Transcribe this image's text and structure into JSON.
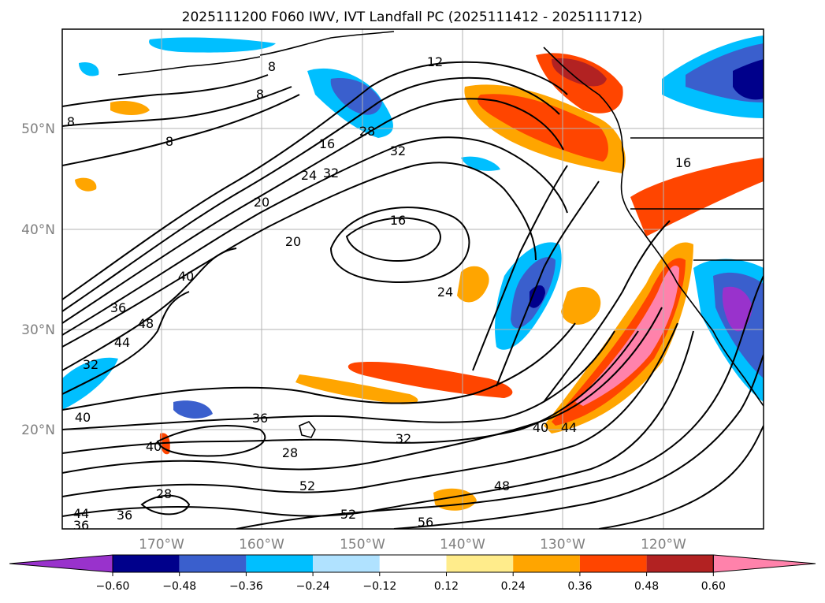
{
  "title": "2025111200 F060 IWV, IVT Landfall PC (2025111412 - 2025111712)",
  "lat_labels": [
    "50°N",
    "40°N",
    "30°N",
    "20°N"
  ],
  "lon_labels": [
    "170°W",
    "160°W",
    "150°W",
    "140°W",
    "130°W",
    "120°W"
  ],
  "colorbar": {
    "tick_labels": [
      "−0.60",
      "−0.48",
      "−0.36",
      "−0.24",
      "−0.12",
      "0.12",
      "0.24",
      "0.36",
      "0.48",
      "0.60"
    ],
    "colors": [
      "#9932cc",
      "#00008b",
      "#3a5fcd",
      "#00bfff",
      "#b0e2ff",
      "#ffffff",
      "#ffec8b",
      "#ffa500",
      "#ff4500",
      "#b22222",
      "#ff82ab"
    ]
  },
  "contour_labels": [
    {
      "text": "12"
    },
    {
      "text": "8"
    },
    {
      "text": "8"
    },
    {
      "text": "8"
    },
    {
      "text": "8"
    },
    {
      "text": "16"
    },
    {
      "text": "28"
    },
    {
      "text": "32"
    },
    {
      "text": "24"
    },
    {
      "text": "32"
    },
    {
      "text": "20"
    },
    {
      "text": "16"
    },
    {
      "text": "20"
    },
    {
      "text": "40"
    },
    {
      "text": "36"
    },
    {
      "text": "48"
    },
    {
      "text": "44"
    },
    {
      "text": "32"
    },
    {
      "text": "24"
    },
    {
      "text": "40"
    },
    {
      "text": "36"
    },
    {
      "text": "40"
    },
    {
      "text": "28"
    },
    {
      "text": "32"
    },
    {
      "text": "52"
    },
    {
      "text": "40"
    },
    {
      "text": "44"
    },
    {
      "text": "48"
    },
    {
      "text": "52"
    },
    {
      "text": "56"
    },
    {
      "text": "28"
    },
    {
      "text": "36"
    },
    {
      "text": "44"
    },
    {
      "text": "36"
    },
    {
      "text": "16"
    }
  ]
}
